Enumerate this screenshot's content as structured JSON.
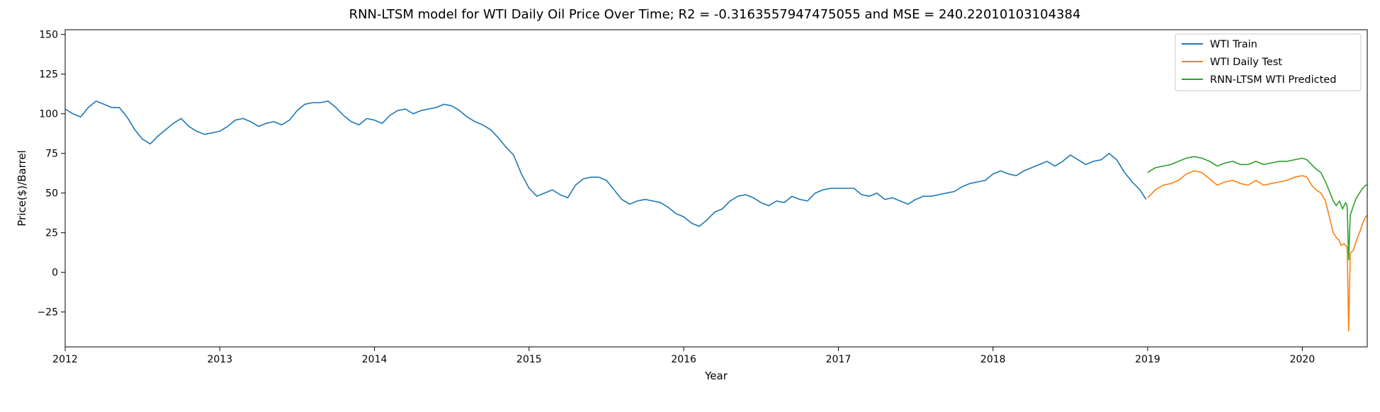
{
  "chart_data": {
    "type": "line",
    "title": "RNN-LTSM model for WTI Daily Oil Price Over Time; R2 = -0.3163557947475055 and MSE = 240.22010103104384",
    "xlabel": "Year",
    "ylabel": "Price($)/Barrel",
    "xlim": [
      2012.0,
      2020.42
    ],
    "ylim": [
      -47,
      153
    ],
    "x_ticks": [
      {
        "value": 2012,
        "label": "2012"
      },
      {
        "value": 2013,
        "label": "2013"
      },
      {
        "value": 2014,
        "label": "2014"
      },
      {
        "value": 2015,
        "label": "2015"
      },
      {
        "value": 2016,
        "label": "2016"
      },
      {
        "value": 2017,
        "label": "2017"
      },
      {
        "value": 2018,
        "label": "2018"
      },
      {
        "value": 2019,
        "label": "2019"
      },
      {
        "value": 2020,
        "label": "2020"
      }
    ],
    "y_ticks": [
      {
        "value": -25,
        "label": "−25"
      },
      {
        "value": 0,
        "label": "0"
      },
      {
        "value": 25,
        "label": "25"
      },
      {
        "value": 50,
        "label": "50"
      },
      {
        "value": 75,
        "label": "75"
      },
      {
        "value": 100,
        "label": "100"
      },
      {
        "value": 125,
        "label": "125"
      },
      {
        "value": 150,
        "label": "150"
      }
    ],
    "grid": false,
    "legend_position": "top-right",
    "series": [
      {
        "name": "WTI Train",
        "color": "#1f77b4",
        "points": [
          [
            2012.0,
            103
          ],
          [
            2012.05,
            100
          ],
          [
            2012.1,
            98
          ],
          [
            2012.15,
            104
          ],
          [
            2012.2,
            108
          ],
          [
            2012.25,
            106
          ],
          [
            2012.3,
            104
          ],
          [
            2012.35,
            104
          ],
          [
            2012.4,
            98
          ],
          [
            2012.45,
            90
          ],
          [
            2012.5,
            84
          ],
          [
            2012.55,
            81
          ],
          [
            2012.6,
            86
          ],
          [
            2012.65,
            90
          ],
          [
            2012.7,
            94
          ],
          [
            2012.75,
            97
          ],
          [
            2012.8,
            92
          ],
          [
            2012.85,
            89
          ],
          [
            2012.9,
            87
          ],
          [
            2012.95,
            88
          ],
          [
            2013.0,
            89
          ],
          [
            2013.05,
            92
          ],
          [
            2013.1,
            96
          ],
          [
            2013.15,
            97
          ],
          [
            2013.2,
            95
          ],
          [
            2013.25,
            92
          ],
          [
            2013.3,
            94
          ],
          [
            2013.35,
            95
          ],
          [
            2013.4,
            93
          ],
          [
            2013.45,
            96
          ],
          [
            2013.5,
            102
          ],
          [
            2013.55,
            106
          ],
          [
            2013.6,
            107
          ],
          [
            2013.65,
            107
          ],
          [
            2013.7,
            108
          ],
          [
            2013.75,
            104
          ],
          [
            2013.8,
            99
          ],
          [
            2013.85,
            95
          ],
          [
            2013.9,
            93
          ],
          [
            2013.95,
            97
          ],
          [
            2014.0,
            96
          ],
          [
            2014.05,
            94
          ],
          [
            2014.1,
            99
          ],
          [
            2014.15,
            102
          ],
          [
            2014.2,
            103
          ],
          [
            2014.25,
            100
          ],
          [
            2014.3,
            102
          ],
          [
            2014.35,
            103
          ],
          [
            2014.4,
            104
          ],
          [
            2014.45,
            106
          ],
          [
            2014.5,
            105
          ],
          [
            2014.55,
            102
          ],
          [
            2014.6,
            98
          ],
          [
            2014.65,
            95
          ],
          [
            2014.7,
            93
          ],
          [
            2014.75,
            90
          ],
          [
            2014.8,
            85
          ],
          [
            2014.85,
            79
          ],
          [
            2014.9,
            74
          ],
          [
            2014.95,
            62
          ],
          [
            2015.0,
            53
          ],
          [
            2015.05,
            48
          ],
          [
            2015.1,
            50
          ],
          [
            2015.15,
            52
          ],
          [
            2015.2,
            49
          ],
          [
            2015.25,
            47
          ],
          [
            2015.3,
            55
          ],
          [
            2015.35,
            59
          ],
          [
            2015.4,
            60
          ],
          [
            2015.45,
            60
          ],
          [
            2015.5,
            58
          ],
          [
            2015.55,
            52
          ],
          [
            2015.6,
            46
          ],
          [
            2015.65,
            43
          ],
          [
            2015.7,
            45
          ],
          [
            2015.75,
            46
          ],
          [
            2015.8,
            45
          ],
          [
            2015.85,
            44
          ],
          [
            2015.9,
            41
          ],
          [
            2015.95,
            37
          ],
          [
            2016.0,
            35
          ],
          [
            2016.05,
            31
          ],
          [
            2016.1,
            29
          ],
          [
            2016.15,
            33
          ],
          [
            2016.2,
            38
          ],
          [
            2016.25,
            40
          ],
          [
            2016.3,
            45
          ],
          [
            2016.35,
            48
          ],
          [
            2016.4,
            49
          ],
          [
            2016.45,
            47
          ],
          [
            2016.5,
            44
          ],
          [
            2016.55,
            42
          ],
          [
            2016.6,
            45
          ],
          [
            2016.65,
            44
          ],
          [
            2016.7,
            48
          ],
          [
            2016.75,
            46
          ],
          [
            2016.8,
            45
          ],
          [
            2016.85,
            50
          ],
          [
            2016.9,
            52
          ],
          [
            2016.95,
            53
          ],
          [
            2017.0,
            53
          ],
          [
            2017.05,
            53
          ],
          [
            2017.1,
            53
          ],
          [
            2017.15,
            49
          ],
          [
            2017.2,
            48
          ],
          [
            2017.25,
            50
          ],
          [
            2017.3,
            46
          ],
          [
            2017.35,
            47
          ],
          [
            2017.4,
            45
          ],
          [
            2017.45,
            43
          ],
          [
            2017.5,
            46
          ],
          [
            2017.55,
            48
          ],
          [
            2017.6,
            48
          ],
          [
            2017.65,
            49
          ],
          [
            2017.7,
            50
          ],
          [
            2017.75,
            51
          ],
          [
            2017.8,
            54
          ],
          [
            2017.85,
            56
          ],
          [
            2017.9,
            57
          ],
          [
            2017.95,
            58
          ],
          [
            2018.0,
            62
          ],
          [
            2018.05,
            64
          ],
          [
            2018.1,
            62
          ],
          [
            2018.15,
            61
          ],
          [
            2018.2,
            64
          ],
          [
            2018.25,
            66
          ],
          [
            2018.3,
            68
          ],
          [
            2018.35,
            70
          ],
          [
            2018.4,
            67
          ],
          [
            2018.45,
            70
          ],
          [
            2018.5,
            74
          ],
          [
            2018.55,
            71
          ],
          [
            2018.6,
            68
          ],
          [
            2018.65,
            70
          ],
          [
            2018.7,
            71
          ],
          [
            2018.75,
            75
          ],
          [
            2018.8,
            71
          ],
          [
            2018.85,
            63
          ],
          [
            2018.9,
            57
          ],
          [
            2018.95,
            52
          ],
          [
            2018.99,
            46
          ]
        ]
      },
      {
        "name": "WTI Daily Test",
        "color": "#ff7f0e",
        "points": [
          [
            2019.0,
            47
          ],
          [
            2019.05,
            52
          ],
          [
            2019.1,
            55
          ],
          [
            2019.15,
            56
          ],
          [
            2019.2,
            58
          ],
          [
            2019.25,
            62
          ],
          [
            2019.3,
            64
          ],
          [
            2019.35,
            63
          ],
          [
            2019.4,
            59
          ],
          [
            2019.45,
            55
          ],
          [
            2019.5,
            57
          ],
          [
            2019.55,
            58
          ],
          [
            2019.6,
            56
          ],
          [
            2019.65,
            55
          ],
          [
            2019.7,
            58
          ],
          [
            2019.75,
            55
          ],
          [
            2019.8,
            56
          ],
          [
            2019.85,
            57
          ],
          [
            2019.9,
            58
          ],
          [
            2019.95,
            60
          ],
          [
            2020.0,
            61
          ],
          [
            2020.03,
            60
          ],
          [
            2020.06,
            55
          ],
          [
            2020.09,
            52
          ],
          [
            2020.12,
            50
          ],
          [
            2020.15,
            45
          ],
          [
            2020.18,
            33
          ],
          [
            2020.2,
            25
          ],
          [
            2020.22,
            22
          ],
          [
            2020.24,
            20
          ],
          [
            2020.25,
            17
          ],
          [
            2020.27,
            18
          ],
          [
            2020.29,
            16
          ],
          [
            2020.3,
            -37
          ],
          [
            2020.31,
            12
          ],
          [
            2020.33,
            14
          ],
          [
            2020.35,
            20
          ],
          [
            2020.37,
            25
          ],
          [
            2020.39,
            31
          ],
          [
            2020.41,
            35
          ],
          [
            2020.42,
            36
          ]
        ]
      },
      {
        "name": "RNN-LTSM WTI Predicted",
        "color": "#2ca02c",
        "points": [
          [
            2019.0,
            63
          ],
          [
            2019.05,
            66
          ],
          [
            2019.1,
            67
          ],
          [
            2019.15,
            68
          ],
          [
            2019.2,
            70
          ],
          [
            2019.25,
            72
          ],
          [
            2019.3,
            73
          ],
          [
            2019.35,
            72
          ],
          [
            2019.4,
            70
          ],
          [
            2019.45,
            67
          ],
          [
            2019.5,
            69
          ],
          [
            2019.55,
            70
          ],
          [
            2019.6,
            68
          ],
          [
            2019.65,
            68
          ],
          [
            2019.7,
            70
          ],
          [
            2019.75,
            68
          ],
          [
            2019.8,
            69
          ],
          [
            2019.85,
            70
          ],
          [
            2019.9,
            70
          ],
          [
            2019.95,
            71
          ],
          [
            2020.0,
            72
          ],
          [
            2020.03,
            71
          ],
          [
            2020.06,
            68
          ],
          [
            2020.09,
            65
          ],
          [
            2020.12,
            63
          ],
          [
            2020.15,
            57
          ],
          [
            2020.18,
            50
          ],
          [
            2020.2,
            45
          ],
          [
            2020.22,
            42
          ],
          [
            2020.24,
            45
          ],
          [
            2020.26,
            40
          ],
          [
            2020.28,
            44
          ],
          [
            2020.29,
            42
          ],
          [
            2020.3,
            8
          ],
          [
            2020.31,
            36
          ],
          [
            2020.33,
            42
          ],
          [
            2020.35,
            47
          ],
          [
            2020.37,
            50
          ],
          [
            2020.39,
            53
          ],
          [
            2020.41,
            55
          ],
          [
            2020.42,
            55
          ]
        ]
      }
    ]
  }
}
